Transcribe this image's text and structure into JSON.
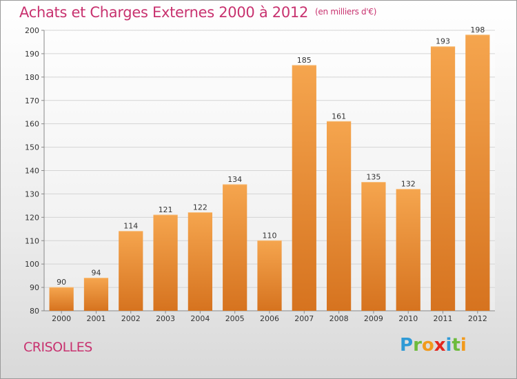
{
  "header": {
    "title": "Achats et Charges Externes 2000 à 2012",
    "subtitle": "(en milliers d'€)"
  },
  "commune_name": "CRISOLLES",
  "logo": {
    "letters": [
      "P",
      "r",
      "o",
      "x",
      "i",
      "t",
      "i"
    ],
    "colors": [
      "#2f9ad6",
      "#6dbb3c",
      "#f29a1c",
      "#e3271f",
      "#2f9ad6",
      "#6dbb3c",
      "#f29a1c"
    ]
  },
  "chart_data": {
    "type": "bar",
    "title": "Achats et Charges Externes 2000 à 2012",
    "subtitle": "(en milliers d'€)",
    "categories": [
      "2000",
      "2001",
      "2002",
      "2003",
      "2004",
      "2005",
      "2006",
      "2007",
      "2008",
      "2009",
      "2010",
      "2011",
      "2012"
    ],
    "values": [
      90,
      94,
      114,
      121,
      122,
      134,
      110,
      185,
      161,
      135,
      132,
      193,
      198
    ],
    "ylim": [
      80,
      200
    ],
    "yticks": [
      80,
      90,
      100,
      110,
      120,
      130,
      140,
      150,
      160,
      170,
      180,
      190,
      200
    ],
    "grid": true,
    "bar_color_top": "#f5a54e",
    "bar_color_bottom": "#d6731f"
  }
}
